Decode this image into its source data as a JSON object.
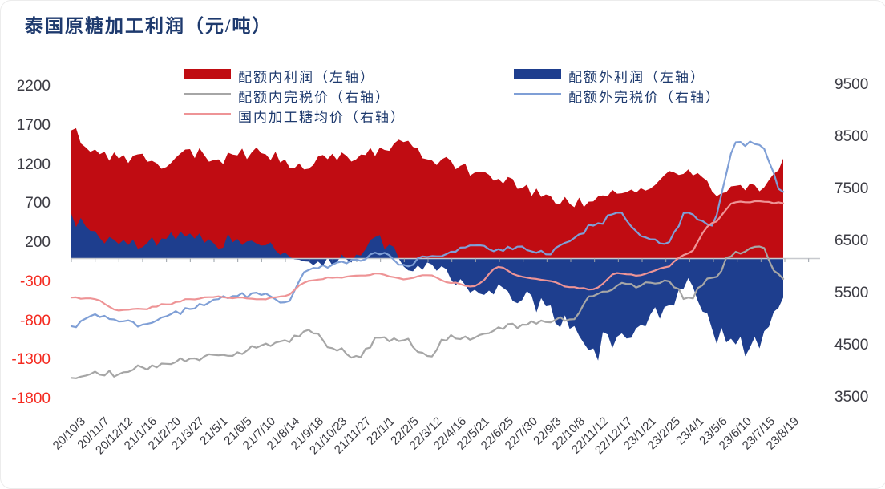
{
  "title": "泰国原糖加工利润（元/吨）",
  "legend": [
    {
      "label": "配额内利润（左轴）",
      "type": "bar",
      "color": "#c00c12",
      "col": 0,
      "row": 0
    },
    {
      "label": "配额内完税价（右轴）",
      "type": "line",
      "color": "#a6a6a6",
      "col": 0,
      "row": 1
    },
    {
      "label": "国内加工糖均价（右轴）",
      "type": "line",
      "color": "#ee9496",
      "col": 0,
      "row": 2
    },
    {
      "label": "配额外利润（左轴）",
      "type": "bar",
      "color": "#1e3e8e",
      "col": 1,
      "row": 0
    },
    {
      "label": "配额外完税价（右轴）",
      "type": "line",
      "color": "#7f9fd6",
      "col": 1,
      "row": 1
    }
  ],
  "chart_data": {
    "type": "area",
    "title": "泰国原糖加工利润（元/吨）",
    "x_labels": [
      "20/10/3",
      "20/11/7",
      "20/12/12",
      "21/1/16",
      "21/2/20",
      "21/3/27",
      "21/5/1",
      "21/6/5",
      "21/7/10",
      "21/8/14",
      "21/9/18",
      "21/10/23",
      "21/11/27",
      "22/1/1",
      "22/2/5",
      "22/3/12",
      "22/4/16",
      "22/5/21",
      "22/6/25",
      "22/7/30",
      "22/9/3",
      "22/10/8",
      "22/11/12",
      "22/12/17",
      "23/1/21",
      "23/2/25",
      "23/4/1",
      "23/5/6",
      "23/6/10",
      "23/7/15",
      "23/8/19"
    ],
    "left_axis": {
      "ticks": [
        2200,
        1700,
        1200,
        700,
        200,
        -300,
        -800,
        -1300,
        -1800
      ],
      "range": [
        -1800,
        2220
      ],
      "negative_tick_color": "#f42a20"
    },
    "right_axis": {
      "ticks": [
        9500,
        8500,
        7500,
        6500,
        5500,
        4500,
        3500
      ],
      "range": [
        3500,
        9500
      ]
    },
    "grid": false,
    "legend_position": "top",
    "series": [
      {
        "name": "配额内利润（左轴）",
        "kind": "area",
        "axis": "left",
        "color": "#c00c12",
        "values": [
          1640,
          1395,
          1280,
          1340,
          1170,
          1400,
          1260,
          1320,
          1350,
          1270,
          1150,
          1340,
          1270,
          1420,
          1490,
          1270,
          1250,
          1100,
          1020,
          900,
          820,
          700,
          730,
          830,
          900,
          1070,
          1140,
          860,
          930,
          860,
          1280
        ]
      },
      {
        "name": "配额外利润（左轴）",
        "kind": "area",
        "axis": "left",
        "color": "#1e3e8e",
        "values": [
          570,
          350,
          185,
          145,
          250,
          320,
          195,
          250,
          165,
          80,
          -40,
          -90,
          50,
          300,
          -100,
          -50,
          -270,
          -400,
          -330,
          -530,
          -610,
          -900,
          -1150,
          -1000,
          -850,
          -620,
          -250,
          -900,
          -1100,
          -1150,
          -500
        ]
      },
      {
        "name": "配额内完税价（右轴）",
        "kind": "line",
        "axis": "right",
        "color": "#a6a6a6",
        "values": [
          3880,
          4000,
          3950,
          4080,
          4150,
          4250,
          4320,
          4370,
          4500,
          4600,
          4800,
          4450,
          4300,
          4650,
          4600,
          4300,
          4700,
          4650,
          4850,
          4900,
          4950,
          5000,
          5450,
          5650,
          5650,
          5750,
          5420,
          5800,
          6300,
          6400,
          5780
        ]
      },
      {
        "name": "配额外完税价（右轴）",
        "kind": "line",
        "axis": "right",
        "color": "#7f9fd6",
        "values": [
          4870,
          5100,
          4960,
          4900,
          5060,
          5200,
          5380,
          5450,
          5470,
          5330,
          5950,
          6050,
          6150,
          6250,
          6050,
          6200,
          6300,
          6420,
          6350,
          6400,
          6250,
          6500,
          6800,
          7050,
          6600,
          6450,
          7050,
          6800,
          8400,
          8350,
          7450
        ]
      },
      {
        "name": "国内加工糖均价（右轴）",
        "kind": "line",
        "axis": "right",
        "color": "#ee9496",
        "values": [
          5420,
          5390,
          5170,
          5200,
          5290,
          5390,
          5430,
          5420,
          5390,
          5450,
          5740,
          5800,
          5840,
          5880,
          5770,
          5850,
          5700,
          5640,
          6010,
          5820,
          5750,
          5620,
          5580,
          5890,
          5850,
          6000,
          6270,
          6850,
          7250,
          7270,
          7230
        ]
      }
    ]
  }
}
